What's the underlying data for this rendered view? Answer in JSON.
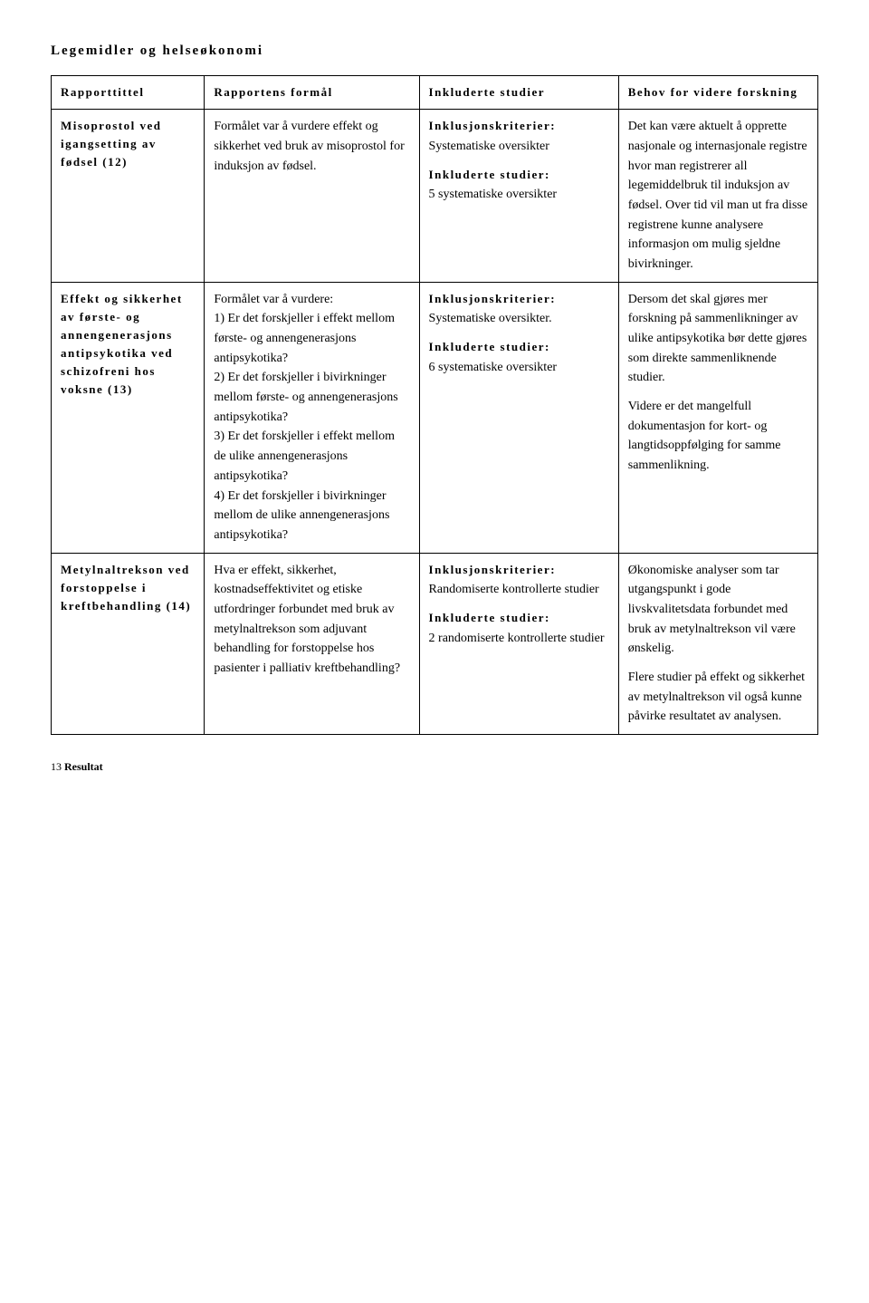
{
  "title": "Legemidler og helseøkonomi",
  "headers": {
    "c1": "Rapporttittel",
    "c2": "Rapportens formål",
    "c3": "Inkluderte studier",
    "c4": "Behov for videre forskning"
  },
  "rows": [
    {
      "c1": "Misoprostol ved igangsetting av fødsel (12)",
      "c2": "Formålet var å vurdere effekt og sikkerhet ved bruk av misoprostol for induksjon av fødsel.",
      "c3_label1": "Inklusjonskriterier:",
      "c3_text1": "Systematiske oversikter",
      "c3_label2": "Inkluderte studier:",
      "c3_text2": "5 systematiske oversikter",
      "c4": "Det kan være aktuelt å opprette nasjonale og internasjonale registre hvor man registrerer all legemiddelbruk til induksjon av fødsel. Over tid vil man ut fra disse registrene kunne analysere informasjon om mulig sjeldne bivirkninger."
    },
    {
      "c1": "Effekt og sikkerhet av første- og annengenerasjons antipsykotika ved schizofreni hos voksne (13)",
      "c2a": "Formålet var å vurdere:",
      "c2b": "1) Er det forskjeller i effekt mellom første- og annengenerasjons antipsykotika?",
      "c2c": "2) Er det forskjeller i bivirkninger mellom første- og annengenerasjons antipsykotika?",
      "c2d": "3) Er det forskjeller i effekt mellom de ulike annengenerasjons antipsykotika?",
      "c2e": "4) Er det forskjeller i bivirkninger mellom de ulike annengenerasjons antipsykotika?",
      "c3_label1": "Inklusjonskriterier:",
      "c3_text1": "Systematiske oversikter.",
      "c3_label2": "Inkluderte studier:",
      "c3_text2": "6 systematiske oversikter",
      "c4a": "Dersom det skal gjøres mer forskning på sammenlikninger av ulike antipsykotika bør dette gjøres som direkte sammenliknende studier.",
      "c4b": "Videre er det mangelfull dokumentasjon for kort- og langtidsoppfølging for samme sammenlikning."
    },
    {
      "c1": "Metylnaltrekson ved forstoppelse i kreftbehandling (14)",
      "c2": "Hva er effekt, sikkerhet, kostnadseffektivitet og etiske utfordringer forbundet med bruk av metylnaltrekson som adjuvant behandling for forstoppelse hos pasienter i palliativ kreftbehandling?",
      "c3_label1": "Inklusjonskriterier:",
      "c3_text1": "Randomiserte kontrollerte studier",
      "c3_label2": "Inkluderte studier:",
      "c3_text2": "2 randomiserte kontrollerte studier",
      "c4a": "Økonomiske analyser som tar utgangspunkt i gode livskvalitetsdata forbundet med bruk av metylnaltrekson vil være ønskelig.",
      "c4b": "Flere studier på effekt og sikkerhet av metylnaltrekson vil også kunne påvirke resultatet av analysen."
    }
  ],
  "footer_page": "13",
  "footer_label": "Resultat"
}
